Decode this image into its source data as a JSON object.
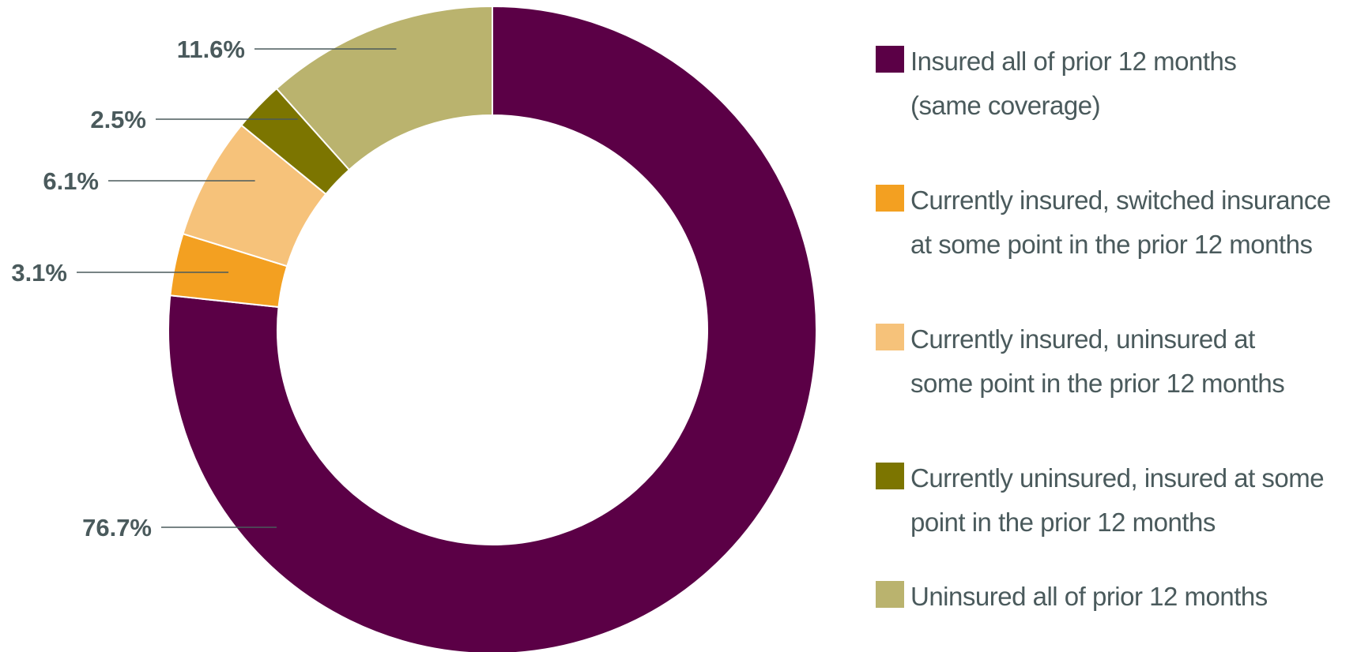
{
  "chart_data": {
    "type": "pie",
    "donut": true,
    "title": "",
    "legend_position": "right",
    "slices": [
      {
        "label": "Insured all of prior 12 months (same coverage)",
        "value": 76.7,
        "display": "76.7%",
        "color": "#5b0046"
      },
      {
        "label": "Currently insured, switched insurance at some point in the prior 12 months",
        "value": 3.1,
        "display": "3.1%",
        "color": "#f3a021"
      },
      {
        "label": "Currently insured, uninsured at some point in the prior 12 months",
        "value": 6.1,
        "display": "6.1%",
        "color": "#f6c27a"
      },
      {
        "label": "Currently uninsured, insured at  some point in the prior 12 months",
        "value": 2.5,
        "display": "2.5%",
        "color": "#7c7500"
      },
      {
        "label": "Uninsured all of prior 12 months",
        "value": 11.6,
        "display": "11.6%",
        "color": "#bab36e"
      }
    ]
  },
  "legend": {
    "items": [
      {
        "line1": "Insured all of prior 12 months",
        "line2": "(same coverage)",
        "color": "#5b0046"
      },
      {
        "line1": "Currently insured, switched insurance",
        "line2": "at some point in the prior 12 months",
        "color": "#f3a021"
      },
      {
        "line1": "Currently insured, uninsured at",
        "line2": "some point in the prior 12 months",
        "color": "#f6c27a"
      },
      {
        "line1": "Currently uninsured, insured at  some",
        "line2": "point in the prior 12 months",
        "color": "#7c7500"
      },
      {
        "line1": "Uninsured all of prior 12 months",
        "line2": "",
        "color": "#bab36e"
      }
    ]
  }
}
